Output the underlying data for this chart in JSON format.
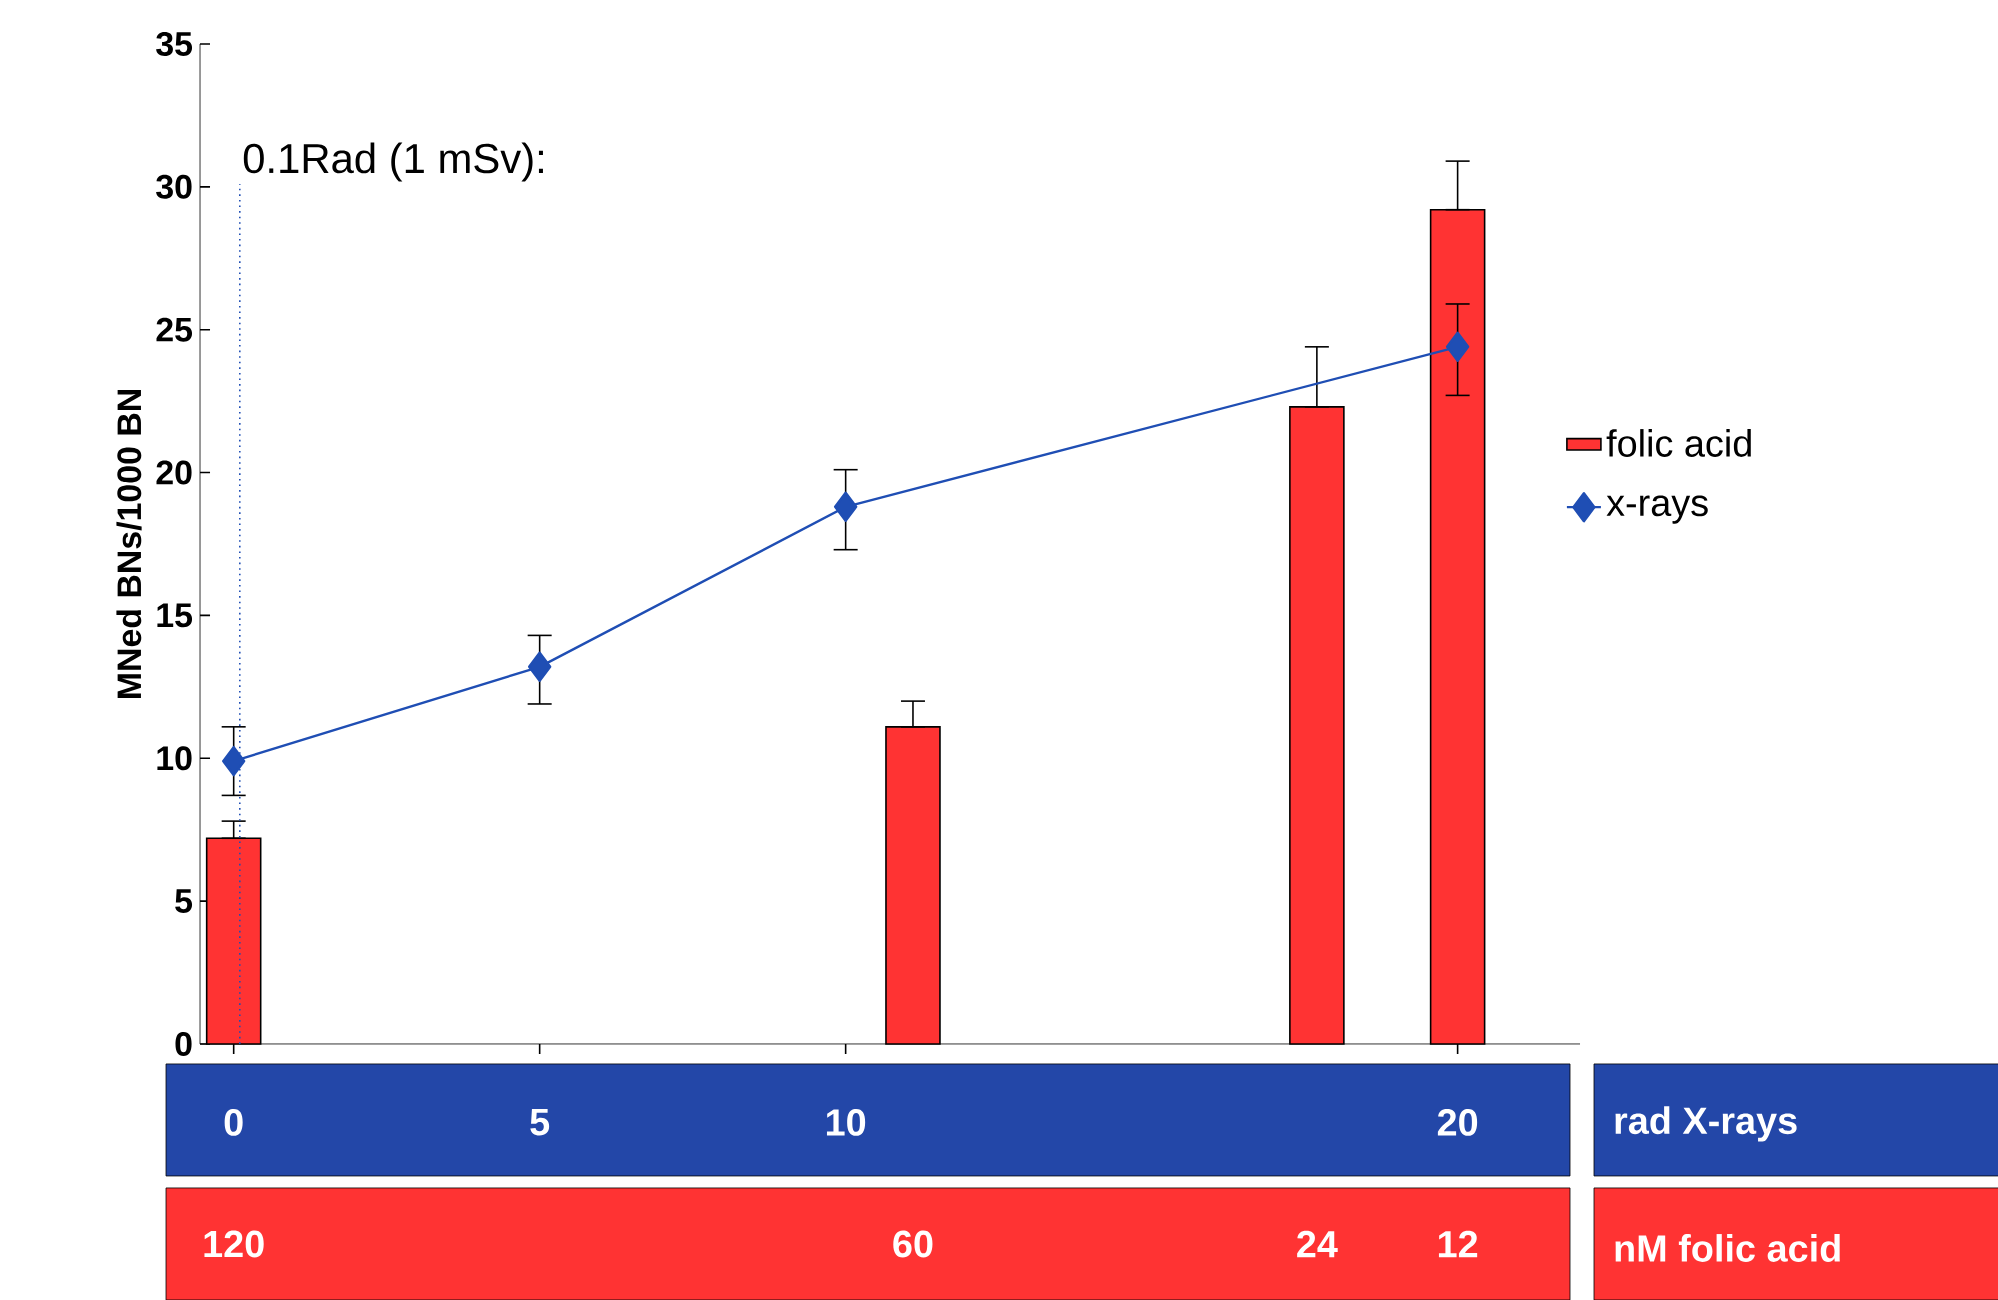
{
  "chart_data": {
    "type": "bar",
    "ylabel": "MNed BNs/1000 BN",
    "xlabel": "rad X-rays",
    "xlim": [
      -0.55,
      22
    ],
    "xticks": [
      0,
      5,
      10,
      20
    ],
    "ylim": [
      0,
      35
    ],
    "yticks": [
      0,
      5,
      10,
      15,
      20,
      25,
      30,
      35
    ],
    "legend": "right",
    "grid": false,
    "series": [
      {
        "name": "folic acid",
        "color": "#ff3333",
        "x": [
          0,
          11.1,
          17.7,
          20
        ],
        "values": [
          7.2,
          11.1,
          22.3,
          29.2
        ],
        "errors": [
          [
            7.2,
            7.8
          ],
          [
            11.1,
            12.0
          ],
          [
            22.3,
            24.4
          ],
          [
            29.2,
            30.9
          ]
        ]
      },
      {
        "name": "x-rays",
        "type": "line",
        "color": "#1f4eb4",
        "marker": "diamond",
        "x": [
          0,
          5,
          10,
          20
        ],
        "values": [
          9.9,
          13.2,
          18.8,
          24.4
        ],
        "errors": [
          [
            8.7,
            11.1
          ],
          [
            11.9,
            14.3
          ],
          [
            17.3,
            20.1
          ],
          [
            22.7,
            25.9
          ]
        ]
      }
    ],
    "annotations": [
      "120",
      "60",
      "24",
      "12",
      "nM folic acid"
    ],
    "ref_lines": [
      {
        "axis": "x",
        "value": 0.1,
        "label": "0.1Rad (1 mSv):",
        "color": "#1f4eb4",
        "line_style": "dotted"
      }
    ]
  }
}
